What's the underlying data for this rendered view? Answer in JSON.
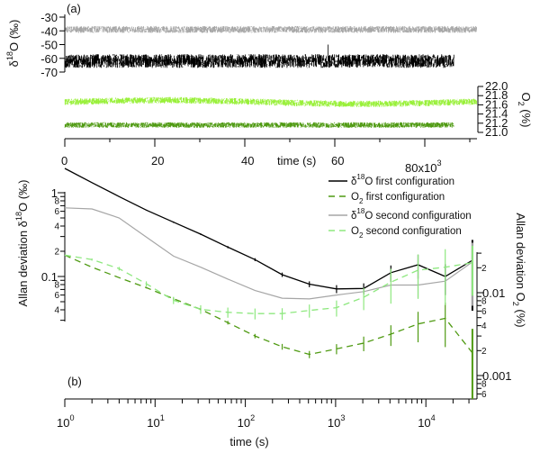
{
  "chart_data": [
    {
      "panel_label": "(a)",
      "type": "line",
      "xlabel": "time (s)",
      "x_tick_labels": [
        "0",
        "20",
        "40",
        "60",
        "80x10^3"
      ],
      "x_ticks": [
        0,
        20000,
        40000,
        60000,
        80000
      ],
      "xlim": [
        0,
        91500
      ],
      "left_ylabel": "δ18O (‰)",
      "left_ylim": [
        -70,
        -30
      ],
      "left_tick_labels": [
        "-30",
        "-40",
        "-50",
        "-60",
        "-70"
      ],
      "right_ylabel": "O2 (%)",
      "right_ylim": [
        21.0,
        22.0
      ],
      "right_tick_labels": [
        "22.0",
        "21.8",
        "21.6",
        "21.4",
        "21.2",
        "21.0"
      ],
      "series": [
        {
          "axis": "left",
          "color": "#a6a6a6",
          "mean": -39,
          "noise": 2.5,
          "x_end": 91500
        },
        {
          "axis": "left",
          "color": "#000000",
          "mean": -62,
          "noise": 5,
          "x_end": 86500,
          "spike": {
            "x": 58500,
            "y": -50
          }
        },
        {
          "axis": "right",
          "color": "#99f03a",
          "mean": 21.66,
          "noise": 0.07,
          "x_end": 91500
        },
        {
          "axis": "right",
          "color": "#4f9a12",
          "mean": 21.16,
          "noise": 0.06,
          "x_end": 86500
        }
      ]
    },
    {
      "panel_label": "(b)",
      "type": "line",
      "xscale": "log",
      "xlabel": "time (s)",
      "x_tick_labels": [
        "10^0",
        "10^1",
        "10^2",
        "10^3",
        "10^4"
      ],
      "xlim": [
        1,
        40000
      ],
      "left_ylabel": "Allan deviation δ18O (‰)",
      "left_yscale": "log",
      "left_ylim": [
        0.03,
        2
      ],
      "left_tick_labels": [
        {
          "v": 1,
          "t": "1"
        },
        {
          "v": 0.8,
          "t": "8"
        },
        {
          "v": 0.6,
          "t": "6"
        },
        {
          "v": 0.4,
          "t": "4"
        },
        {
          "v": 0.2,
          "t": "2"
        },
        {
          "v": 0.1,
          "t": "0.1"
        },
        {
          "v": 0.08,
          "t": "8"
        },
        {
          "v": 0.06,
          "t": "6"
        },
        {
          "v": 0.04,
          "t": "4"
        }
      ],
      "right_ylabel": "Allan deviation O2 (%)",
      "right_yscale": "log",
      "right_ylim": [
        0.00055,
        0.033
      ],
      "right_tick_labels": [
        {
          "v": 0.02,
          "t": "2"
        },
        {
          "v": 0.01,
          "t": "0.01"
        },
        {
          "v": 0.008,
          "t": "8"
        },
        {
          "v": 0.006,
          "t": "6"
        },
        {
          "v": 0.004,
          "t": "4"
        },
        {
          "v": 0.002,
          "t": "2"
        },
        {
          "v": 0.001,
          "t": "0.001"
        },
        {
          "v": 0.0008,
          "t": "8"
        },
        {
          "v": 0.0006,
          "t": "6"
        }
      ],
      "x": [
        1,
        2,
        4,
        8,
        16,
        32,
        64,
        128,
        256,
        512,
        1024,
        2048,
        4096,
        8192,
        16384,
        32768
      ],
      "series": [
        {
          "name": "δ18O first configuration",
          "axis": "left",
          "color": "#000000",
          "dash": false,
          "values": [
            1.95,
            1.32,
            0.9,
            0.62,
            0.445,
            0.32,
            0.224,
            0.159,
            0.105,
            0.081,
            0.071,
            0.072,
            0.111,
            0.138,
            0.1,
            0.156
          ],
          "err": [
            0,
            0,
            0,
            0.01,
            0.02,
            0.02,
            0.03,
            0.04,
            0.06,
            0.08,
            0.11,
            0.15,
            0.22,
            0.32,
            0.4,
            0.75
          ]
        },
        {
          "name": "O2 first configuration",
          "axis": "right",
          "color": "#4f9a12",
          "dash": true,
          "values": [
            0.0284,
            0.0203,
            0.0152,
            0.0115,
            0.00846,
            0.0063,
            0.00435,
            0.003,
            0.00223,
            0.0018,
            0.0021,
            0.00246,
            0.00316,
            0.0042,
            0.0049,
            0.00188
          ],
          "err": [
            0,
            0,
            0,
            0.02,
            0.03,
            0.04,
            0.05,
            0.06,
            0.08,
            0.1,
            0.14,
            0.2,
            0.28,
            0.4,
            0.55,
            0.95
          ]
        },
        {
          "name": "δ18O second configuration",
          "axis": "left",
          "color": "#a6a6a6",
          "dash": false,
          "values": [
            0.66,
            0.64,
            0.5,
            0.295,
            0.175,
            0.129,
            0.093,
            0.068,
            0.055,
            0.054,
            0.06,
            0.066,
            0.079,
            0.079,
            0.088,
            0.149
          ],
          "err": [
            0,
            0,
            0,
            0,
            0,
            0,
            0,
            0,
            0,
            0,
            0,
            0,
            0,
            0.3,
            0,
            0.7
          ]
        },
        {
          "name": "O2 second configuration",
          "axis": "right",
          "color": "#8ee87f",
          "dash": true,
          "values": [
            0.0284,
            0.0251,
            0.0195,
            0.0128,
            0.0081,
            0.0063,
            0.0058,
            0.0056,
            0.0056,
            0.0061,
            0.0066,
            0.0088,
            0.0134,
            0.0187,
            0.0203,
            0.023
          ],
          "err": [
            0,
            0.03,
            0.05,
            0.07,
            0.1,
            0.12,
            0.14,
            0.15,
            0.16,
            0.18,
            0.22,
            0.3,
            0.45,
            0.55,
            0.65,
            0.6
          ]
        }
      ],
      "legend_position": "top-right"
    }
  ]
}
